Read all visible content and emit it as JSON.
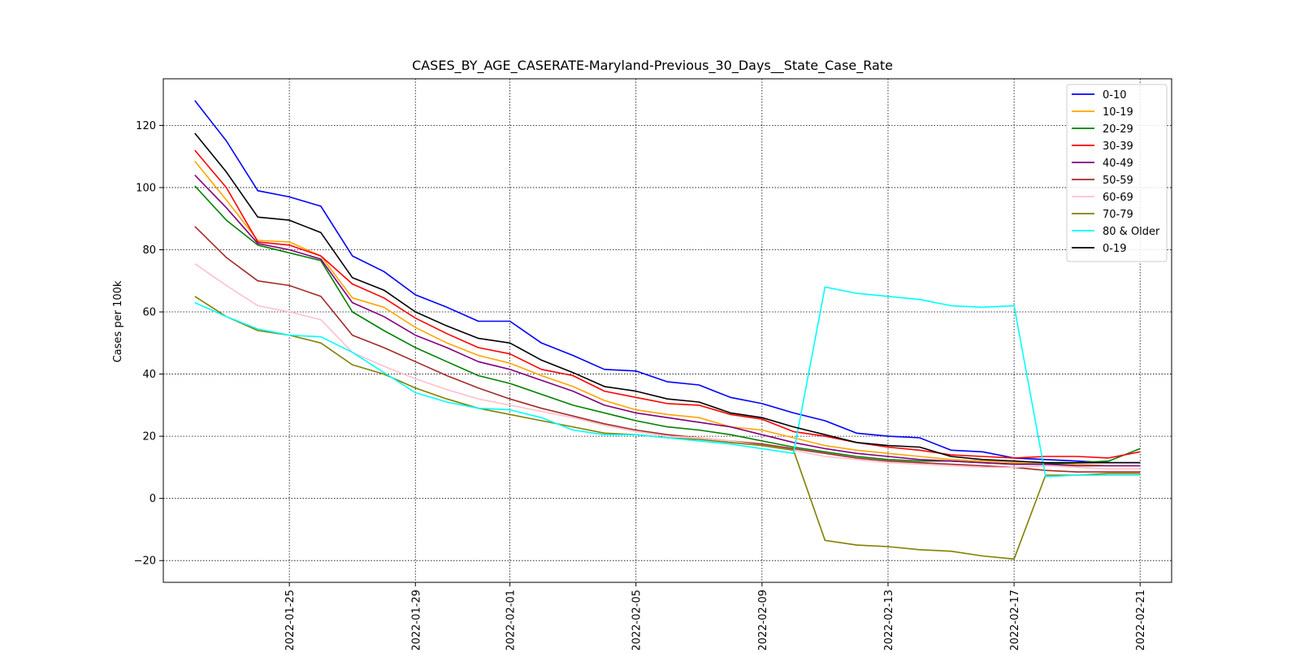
{
  "chart_data": {
    "type": "line",
    "title": "CASES_BY_AGE_CASERATE-Maryland-Previous_30_Days__State_Case_Rate",
    "xlabel": "",
    "ylabel": "Cases per 100k",
    "grid": true,
    "legend_position": "top-right",
    "xlim": [
      "2022-01-21",
      "2022-02-22"
    ],
    "ylim": [
      -27,
      135
    ],
    "x_ticks": [
      "2022-01-25",
      "2022-01-29",
      "2022-02-01",
      "2022-02-05",
      "2022-02-09",
      "2022-02-13",
      "2022-02-17",
      "2022-02-21"
    ],
    "y_ticks": [
      -20,
      0,
      20,
      40,
      60,
      80,
      100,
      120
    ],
    "x": [
      "2022-01-22",
      "2022-01-23",
      "2022-01-24",
      "2022-01-25",
      "2022-01-26",
      "2022-01-27",
      "2022-01-28",
      "2022-01-29",
      "2022-01-30",
      "2022-01-31",
      "2022-02-01",
      "2022-02-02",
      "2022-02-03",
      "2022-02-04",
      "2022-02-05",
      "2022-02-06",
      "2022-02-07",
      "2022-02-08",
      "2022-02-09",
      "2022-02-10",
      "2022-02-11",
      "2022-02-12",
      "2022-02-13",
      "2022-02-14",
      "2022-02-15",
      "2022-02-16",
      "2022-02-17",
      "2022-02-18",
      "2022-02-19",
      "2022-02-20",
      "2022-02-21"
    ],
    "series": [
      {
        "name": "0-10",
        "color": "#0000ff",
        "values": [
          128,
          115,
          99,
          97,
          94,
          78,
          73,
          65.5,
          61.5,
          57,
          57,
          50,
          46,
          41.5,
          41,
          37.5,
          36.5,
          32.5,
          30.5,
          27.5,
          25,
          21,
          20,
          19.5,
          15.5,
          15,
          13,
          12.5,
          12,
          11.5,
          11.5
        ]
      },
      {
        "name": "10-19",
        "color": "#ffa500",
        "values": [
          108.5,
          96,
          83,
          82.5,
          78,
          64.5,
          61.5,
          55,
          50,
          46,
          43.5,
          39.5,
          36,
          31.5,
          28.5,
          27,
          26,
          23,
          22,
          19.5,
          17,
          15.5,
          14.5,
          13.5,
          12.5,
          12,
          11.5,
          11,
          11,
          10.5,
          10.5
        ]
      },
      {
        "name": "20-29",
        "color": "#008000",
        "values": [
          100.5,
          89.5,
          81.5,
          79,
          76.5,
          60,
          54,
          48.5,
          44,
          39.5,
          37,
          33.5,
          30,
          27.5,
          25,
          23,
          22,
          20.5,
          18.5,
          16.5,
          15,
          13.5,
          12.5,
          12,
          12,
          11.5,
          11,
          11,
          11.5,
          12,
          16
        ]
      },
      {
        "name": "30-39",
        "color": "#ff0000",
        "values": [
          112,
          100,
          82.5,
          81.5,
          78,
          69,
          64.5,
          58,
          53,
          48.5,
          46.5,
          41.5,
          39.5,
          34.5,
          32.5,
          30.5,
          30,
          27,
          25.5,
          21.5,
          20,
          18,
          16.5,
          15.5,
          14,
          13.5,
          13,
          13.5,
          13.5,
          13,
          15
        ]
      },
      {
        "name": "40-49",
        "color": "#800080",
        "values": [
          104,
          93.5,
          82,
          80,
          77,
          63,
          58.5,
          52.5,
          48.5,
          44,
          41.5,
          38,
          34.5,
          30,
          27.5,
          26,
          24.5,
          23,
          20.5,
          18,
          16,
          14.5,
          13.5,
          12.5,
          12,
          11.5,
          11,
          11,
          10.5,
          10.5,
          10.5
        ]
      },
      {
        "name": "50-59",
        "color": "#a52a2a",
        "values": [
          87.5,
          77.5,
          70,
          68.5,
          65,
          52.5,
          48.5,
          44,
          39.5,
          35.5,
          32,
          29,
          26.5,
          24,
          22,
          20.5,
          19.5,
          18.5,
          17.5,
          16,
          14.5,
          13,
          12,
          11.5,
          11,
          10.5,
          10,
          9,
          8.5,
          8.5,
          8.5
        ]
      },
      {
        "name": "60-69",
        "color": "#ffc0cb",
        "values": [
          75.5,
          68.5,
          62,
          60,
          57.5,
          47,
          42.5,
          38.5,
          35,
          32,
          30,
          28,
          26,
          23.5,
          21.5,
          20,
          19.5,
          18.5,
          17,
          15.5,
          13.5,
          12.5,
          11.5,
          11,
          10.5,
          10,
          10,
          10.5,
          10,
          9.5,
          9.5
        ]
      },
      {
        "name": "70-79",
        "color": "#808000",
        "values": [
          65,
          58.5,
          54,
          52.5,
          50,
          43,
          40,
          35.5,
          32,
          29,
          27,
          25,
          23,
          21,
          20.5,
          19.5,
          19,
          18,
          17,
          15.5,
          -13.5,
          -15,
          -15.5,
          -16.5,
          -17,
          -18.5,
          -19.5,
          7.5,
          7.5,
          8,
          8
        ]
      },
      {
        "name": "80 & Older",
        "color": "#00ffff",
        "values": [
          63,
          58.5,
          54.5,
          52.5,
          52,
          47,
          40.5,
          34,
          31,
          29,
          28.5,
          26,
          22,
          20.5,
          20.5,
          19.5,
          18.5,
          17.5,
          16,
          14.5,
          68,
          66,
          65,
          64,
          62,
          61.5,
          62,
          7,
          7.5,
          7.5,
          7.5
        ]
      },
      {
        "name": "0-19",
        "color": "#000000",
        "values": [
          117.5,
          105,
          90.5,
          89.5,
          85.5,
          71,
          67,
          60,
          55.5,
          51.5,
          50,
          44.5,
          40.5,
          36,
          34.5,
          32,
          31,
          27.5,
          26,
          23,
          20.5,
          18,
          17,
          16.5,
          13.5,
          12.5,
          12,
          11.5,
          11.5,
          11.5,
          11.5
        ]
      }
    ]
  }
}
